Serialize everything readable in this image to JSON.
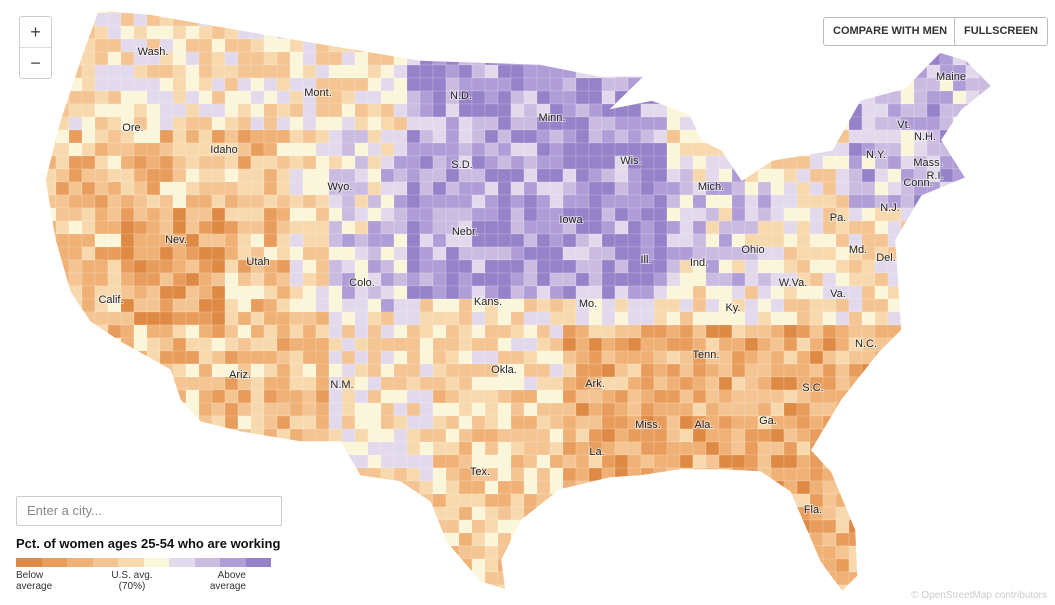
{
  "controls": {
    "zoom_in": "+",
    "zoom_out": "−",
    "compare": "COMPARE WITH MEN",
    "fullscreen": "FULLSCREEN",
    "search_placeholder": "Enter a city..."
  },
  "legend": {
    "title": "Pct. of women ages 25-54 who are working",
    "colors": [
      "#de8a45",
      "#e89d5c",
      "#efb176",
      "#f4c592",
      "#f8d8ad",
      "#fbf6da",
      "#e2d9ec",
      "#cbbbe1",
      "#b09cd6",
      "#9682c8"
    ],
    "low": [
      "Below",
      "average"
    ],
    "mid": [
      "U.S. avg.",
      "(70%)"
    ],
    "high": [
      "Above",
      "average"
    ]
  },
  "states": [
    "Wash.",
    "Mont.",
    "N.D.",
    "Minn.",
    "Ore.",
    "Idaho",
    "S.D.",
    "Wis.",
    "Wyo.",
    "Mich.",
    "N.Y.",
    "Vt.",
    "N.H.",
    "Maine",
    "Mass.",
    "R.I.",
    "Conn.",
    "N.J.",
    "Pa.",
    "Iowa",
    "Nebr.",
    "Nev.",
    "Utah",
    "Colo.",
    "Ill.",
    "Ind.",
    "Ohio",
    "Md.",
    "Del.",
    "W.Va.",
    "Va.",
    "Kans.",
    "Mo.",
    "Ky.",
    "Calif.",
    "N.C.",
    "Tenn.",
    "Ariz.",
    "N.M.",
    "Okla.",
    "Ark.",
    "S.C.",
    "Miss.",
    "Ala.",
    "Ga.",
    "La.",
    "Tex.",
    "Fla."
  ],
  "attribution": "© OpenStreetMap contributors"
}
